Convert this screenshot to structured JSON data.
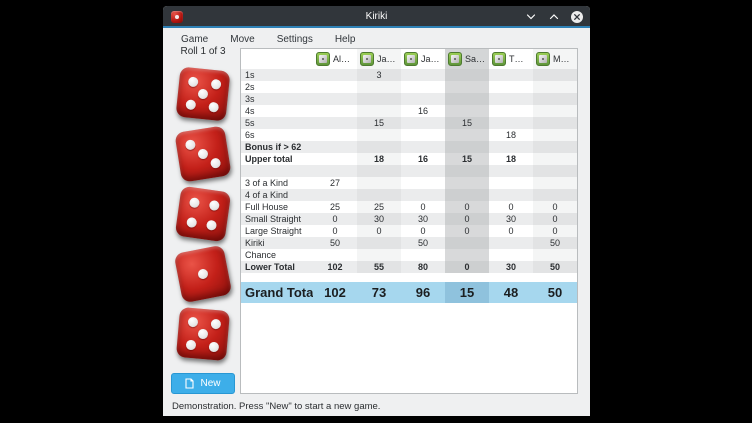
{
  "window": {
    "title": "Kiriki",
    "controls": {
      "minimize": "minimize",
      "maximize": "maximize",
      "close": "close"
    }
  },
  "menu": {
    "items": [
      "Game",
      "Move",
      "Settings",
      "Help"
    ]
  },
  "panel": {
    "roll_label": "Roll 1 of 3",
    "dice": [
      5,
      3,
      4,
      1,
      5
    ],
    "new_button_label": "New"
  },
  "scoreboard": {
    "players": [
      "Al…",
      "Ja…",
      "Ja…",
      "Sa…",
      "T…",
      "M…"
    ],
    "selected_player_index": 3,
    "rows": [
      {
        "label": "1s",
        "values": [
          "",
          "3",
          "",
          "",
          "",
          ""
        ]
      },
      {
        "label": "2s",
        "values": [
          "",
          "",
          "",
          "",
          "",
          ""
        ]
      },
      {
        "label": "3s",
        "values": [
          "",
          "",
          "",
          "",
          "",
          ""
        ]
      },
      {
        "label": "4s",
        "values": [
          "",
          "",
          "16",
          "",
          "",
          ""
        ]
      },
      {
        "label": "5s",
        "values": [
          "",
          "15",
          "",
          "15",
          "",
          ""
        ]
      },
      {
        "label": "6s",
        "values": [
          "",
          "",
          "",
          "",
          "18",
          ""
        ]
      },
      {
        "label": "Bonus if > 62",
        "values": [
          "",
          "",
          "",
          "",
          "",
          ""
        ],
        "bold": true
      },
      {
        "label": "Upper total",
        "values": [
          "",
          "18",
          "16",
          "15",
          "18",
          ""
        ],
        "bold": true
      },
      {
        "label": "",
        "values": [
          "",
          "",
          "",
          "",
          "",
          ""
        ]
      },
      {
        "label": "3 of a Kind",
        "values": [
          "27",
          "",
          "",
          "",
          "",
          ""
        ]
      },
      {
        "label": "4 of a Kind",
        "values": [
          "",
          "",
          "",
          "",
          "",
          ""
        ]
      },
      {
        "label": "Full House",
        "values": [
          "25",
          "25",
          "0",
          "0",
          "0",
          "0"
        ]
      },
      {
        "label": "Small Straight",
        "values": [
          "0",
          "30",
          "30",
          "0",
          "30",
          "0"
        ]
      },
      {
        "label": "Large Straight",
        "values": [
          "0",
          "0",
          "0",
          "0",
          "0",
          "0"
        ]
      },
      {
        "label": "Kiriki",
        "values": [
          "50",
          "",
          "50",
          "",
          "",
          "50"
        ]
      },
      {
        "label": "Chance",
        "values": [
          "",
          "",
          "",
          "",
          "",
          ""
        ]
      },
      {
        "label": "Lower Total",
        "values": [
          "102",
          "55",
          "80",
          "0",
          "30",
          "50"
        ],
        "bold": true
      }
    ],
    "grand_total": {
      "label": "Grand Total",
      "values": [
        "102",
        "73",
        "96",
        "15",
        "48",
        "50"
      ]
    }
  },
  "status_bar": {
    "text": "Demonstration. Press \"New\" to start a new game."
  },
  "colors": {
    "titlebar": "#31363b",
    "titlebar_accent": "#2e81b6",
    "window_bg": "#eff0f1",
    "button_blue": "#3daee9",
    "grand_total_bg": "#a6d7ee",
    "grand_total_selected_bg": "#8fc2dd",
    "die_red": "#c32019",
    "player_icon_green": "#76b349"
  }
}
